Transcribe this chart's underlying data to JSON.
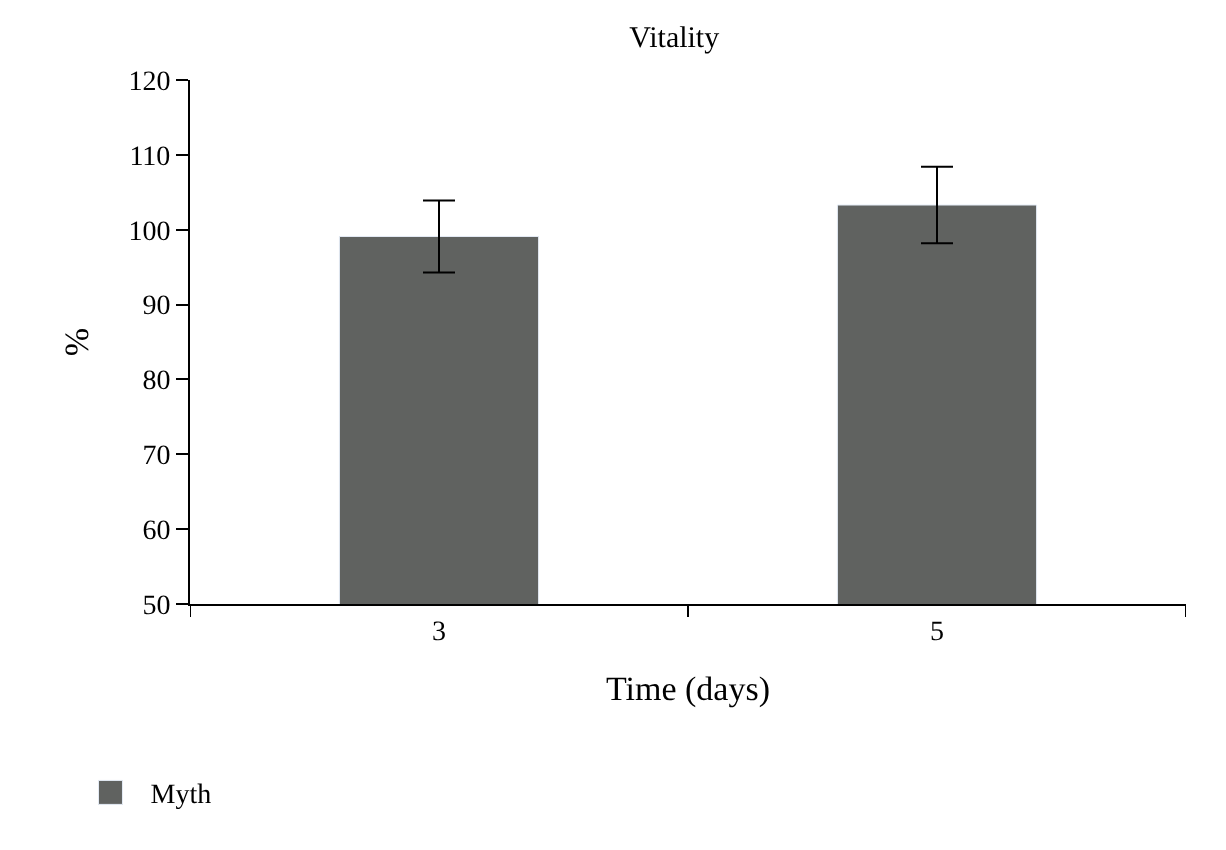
{
  "chart_data": {
    "type": "bar",
    "title": "Vitality",
    "xlabel": "Time (days)",
    "ylabel": "%",
    "categories": [
      "3",
      "5"
    ],
    "series": [
      {
        "name": "Myth",
        "color": "#606260",
        "values": [
          99.1,
          103.3
        ],
        "errors": [
          4.8,
          5.1
        ]
      }
    ],
    "ylim": [
      50,
      120
    ],
    "yticks": [
      50,
      60,
      70,
      80,
      90,
      100,
      110,
      120
    ],
    "legend": "bottom left"
  }
}
